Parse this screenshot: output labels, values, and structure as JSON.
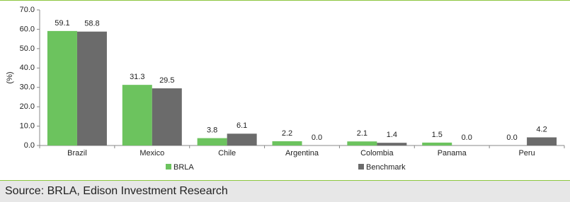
{
  "chart_data": {
    "type": "bar",
    "y_label": "(%)",
    "categories": [
      "Brazil",
      "Mexico",
      "Chile",
      "Argentina",
      "Colombia",
      "Panama",
      "Peru"
    ],
    "series": [
      {
        "name": "BRLA",
        "color": "#6cc35e",
        "values": [
          59.1,
          31.3,
          3.8,
          2.2,
          2.1,
          1.5,
          0.0
        ],
        "value_labels": [
          "59.1",
          "31.3",
          "3.8",
          "2.2",
          "2.1",
          "1.5",
          "0.0"
        ]
      },
      {
        "name": "Benchmark",
        "color": "#6b6b6b",
        "values": [
          58.8,
          29.5,
          6.1,
          0.0,
          1.4,
          0.0,
          4.2
        ],
        "value_labels": [
          "58.8",
          "29.5",
          "6.1",
          "0.0",
          "1.4",
          "0.0",
          "4.2"
        ]
      }
    ],
    "ylim": [
      0,
      70
    ],
    "yticks": [
      {
        "value": 0,
        "label": "0.0"
      },
      {
        "value": 10,
        "label": "10.0"
      },
      {
        "value": 20,
        "label": "20.0"
      },
      {
        "value": 30,
        "label": "30.0"
      },
      {
        "value": 40,
        "label": "40.0"
      },
      {
        "value": 50,
        "label": "50.0"
      },
      {
        "value": 60,
        "label": "60.0"
      },
      {
        "value": 70,
        "label": "70.0"
      }
    ],
    "source": "Source: BRLA, Edison Investment Research"
  }
}
